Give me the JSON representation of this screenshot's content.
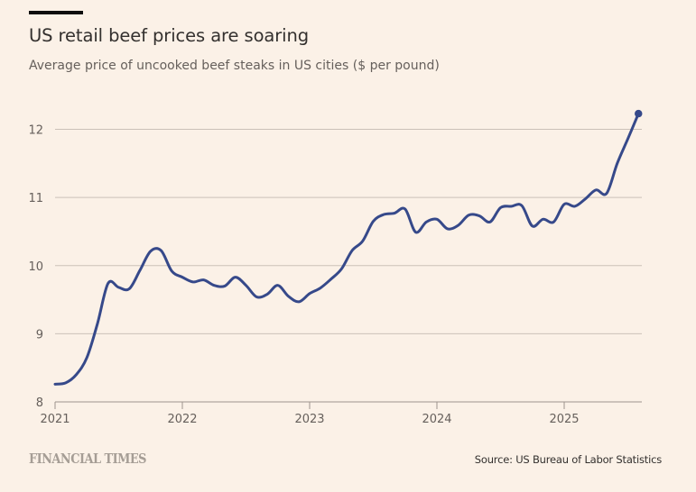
{
  "header": {
    "title": "US retail beef prices are soaring",
    "subtitle": "Average price of uncooked beef steaks in US cities ($ per pound)"
  },
  "footer": {
    "brand": "FINANCIAL TIMES",
    "source": "Source: US Bureau of Labor Statistics"
  },
  "colors": {
    "background": "#fbf1e7",
    "line": "#36498a",
    "grid": "#cbc1b8",
    "axis": "#9c948c",
    "text": "#33302e",
    "muted": "#66605c",
    "brand": "#a59d95"
  },
  "chart_data": {
    "type": "line",
    "title": "US retail beef prices are soaring",
    "subtitle": "Average price of uncooked beef steaks in US cities ($ per pound)",
    "xlabel": "",
    "ylabel": "$ per pound",
    "xlim": [
      "2021-01",
      "2025-08"
    ],
    "ylim": [
      8,
      12
    ],
    "yticks": [
      8,
      9,
      10,
      11,
      12
    ],
    "xticks": [
      "2021",
      "2022",
      "2023",
      "2024",
      "2025"
    ],
    "grid": true,
    "legend": "none",
    "end_marker": true,
    "series": [
      {
        "name": "Average price of uncooked beef steaks",
        "x": [
          "2021-01",
          "2021-02",
          "2021-03",
          "2021-04",
          "2021-05",
          "2021-06",
          "2021-07",
          "2021-08",
          "2021-09",
          "2021-10",
          "2021-11",
          "2021-12",
          "2022-01",
          "2022-02",
          "2022-03",
          "2022-04",
          "2022-05",
          "2022-06",
          "2022-07",
          "2022-08",
          "2022-09",
          "2022-10",
          "2022-11",
          "2022-12",
          "2023-01",
          "2023-02",
          "2023-03",
          "2023-04",
          "2023-05",
          "2023-06",
          "2023-07",
          "2023-08",
          "2023-09",
          "2023-10",
          "2023-11",
          "2023-12",
          "2024-01",
          "2024-02",
          "2024-03",
          "2024-04",
          "2024-05",
          "2024-06",
          "2024-07",
          "2024-08",
          "2024-09",
          "2024-10",
          "2024-11",
          "2024-12",
          "2025-01",
          "2025-02",
          "2025-03",
          "2025-04",
          "2025-05",
          "2025-06",
          "2025-07",
          "2025-08"
        ],
        "values": [
          8.26,
          8.28,
          8.4,
          8.65,
          9.15,
          9.74,
          9.68,
          9.66,
          9.93,
          10.21,
          10.22,
          9.92,
          9.83,
          9.76,
          9.79,
          9.71,
          9.7,
          9.83,
          9.71,
          9.54,
          9.58,
          9.71,
          9.55,
          9.47,
          9.59,
          9.67,
          9.8,
          9.95,
          10.22,
          10.36,
          10.65,
          10.75,
          10.77,
          10.83,
          10.49,
          10.64,
          10.68,
          10.54,
          10.59,
          10.74,
          10.73,
          10.64,
          10.85,
          10.87,
          10.88,
          10.58,
          10.68,
          10.64,
          10.9,
          10.87,
          10.98,
          11.11,
          11.06,
          11.5,
          11.86,
          12.23
        ]
      }
    ]
  }
}
